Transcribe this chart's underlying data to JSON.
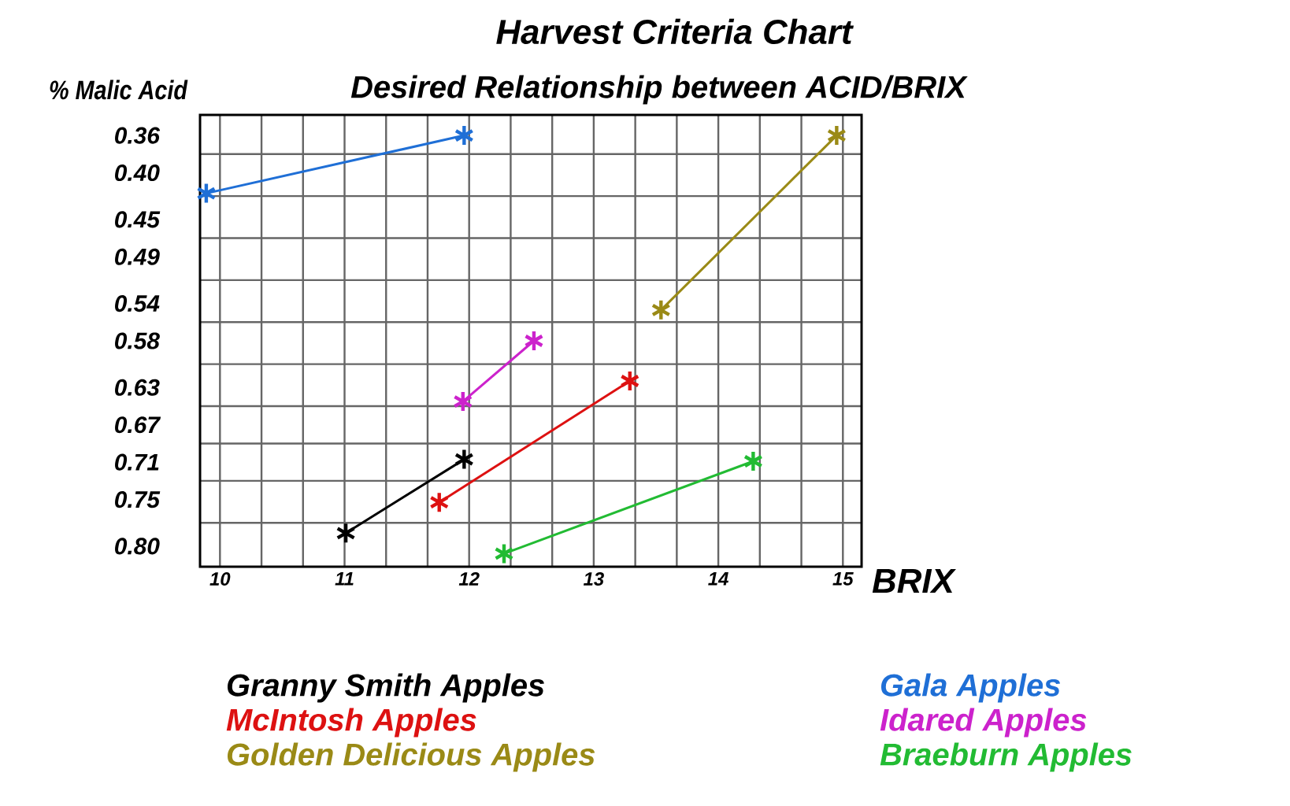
{
  "chart_data": {
    "type": "line",
    "title": "Harvest Criteria Chart",
    "subtitle": "Desired Relationship between   ACID/BRIX",
    "xlabel": "BRIX",
    "ylabel": "% Malic Acid",
    "xlim": [
      9.84,
      15.15
    ],
    "xticks": [
      10,
      11,
      12,
      13,
      14,
      15
    ],
    "ylim": [
      0.822,
      0.338
    ],
    "yticks": [
      0.36,
      {
        "value": 0.4,
        "label": "0.40"
      },
      0.45,
      0.49,
      0.54,
      0.58,
      0.63,
      0.67,
      0.71,
      0.75,
      {
        "value": 0.8,
        "label": "0.80"
      }
    ],
    "grid": true,
    "marker": "cross",
    "legend": "bottom",
    "series": [
      {
        "name": "Granny Smith Apples",
        "color": "#000000",
        "x": [
          11.01,
          11.96
        ],
        "values": [
          0.786,
          0.707
        ]
      },
      {
        "name": "McIntosh Apples",
        "color": "#dd1111",
        "x": [
          11.76,
          13.29
        ],
        "values": [
          0.753,
          0.623
        ]
      },
      {
        "name": "Golden Delicious Apples",
        "color": "#9a8a16",
        "x": [
          13.54,
          14.95
        ],
        "values": [
          0.547,
          0.36
        ]
      },
      {
        "name": "Gala Apples",
        "color": "#1f6fd6",
        "x": [
          9.89,
          11.96
        ],
        "values": [
          0.422,
          0.36
        ]
      },
      {
        "name": "Idared Apples",
        "color": "#cc22cc",
        "x": [
          11.95,
          12.52
        ],
        "values": [
          0.645,
          0.58
        ]
      },
      {
        "name": "Braeburn Apples",
        "color": "#22bb33",
        "x": [
          12.28,
          14.28
        ],
        "values": [
          0.808,
          0.709
        ]
      }
    ]
  }
}
